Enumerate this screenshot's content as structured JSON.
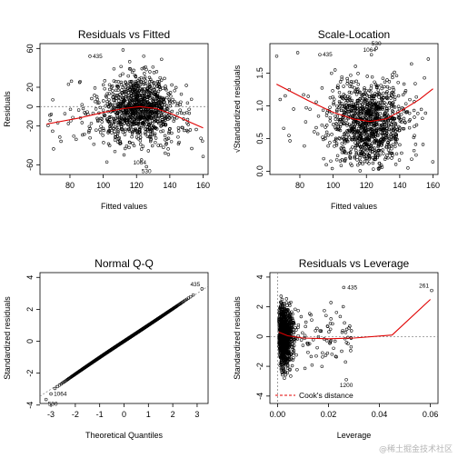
{
  "chart_data": [
    {
      "type": "scatter",
      "title": "Residuals vs Fitted",
      "xlabel": "Fitted values",
      "ylabel": "Residuals",
      "xlim": [
        62,
        163
      ],
      "ylim": [
        -70,
        65
      ],
      "xticks": [
        80,
        100,
        120,
        140,
        160
      ],
      "yticks": [
        -60,
        -20,
        0,
        20,
        60
      ],
      "reference_line": 0,
      "smooth": {
        "x": [
          66,
          85,
          100,
          112,
          122,
          132,
          142,
          152,
          160
        ],
        "y": [
          -18,
          -12,
          -6,
          -2,
          0,
          -2,
          -8,
          -16,
          -22
        ]
      },
      "cloud": {
        "center_x": 121,
        "spread_x": 11,
        "spread_y": 17,
        "n": 1100,
        "seed": 11
      },
      "outliers": [
        {
          "x": 92,
          "y": 52,
          "label": "435"
        },
        {
          "x": 123,
          "y": -55,
          "label": "1064"
        },
        {
          "x": 126,
          "y": -62,
          "label": "530"
        }
      ]
    },
    {
      "type": "scatter",
      "title": "Scale-Location",
      "xlabel": "Fitted values",
      "ylabel": "√Standardized residuals",
      "xlim": [
        62,
        163
      ],
      "ylim": [
        -0.05,
        1.95
      ],
      "xticks": [
        80,
        100,
        120,
        140,
        160
      ],
      "yticks": [
        0.0,
        0.5,
        1.0,
        1.5
      ],
      "ytick_labels": [
        "0.0",
        "0.5",
        "1.0",
        "1.5"
      ],
      "smooth": {
        "x": [
          66,
          85,
          100,
          112,
          122,
          132,
          142,
          152,
          160
        ],
        "y": [
          1.33,
          1.08,
          0.9,
          0.8,
          0.76,
          0.8,
          0.94,
          1.1,
          1.26
        ]
      },
      "cloud": {
        "center_x": 121,
        "spread_x": 11,
        "n": 1100,
        "seed": 23
      },
      "outliers": [
        {
          "x": 92,
          "y": 1.78,
          "label": "435"
        },
        {
          "x": 123,
          "y": 1.78,
          "label": "1064"
        },
        {
          "x": 126,
          "y": 1.88,
          "label": "530"
        }
      ]
    },
    {
      "type": "scatter",
      "title": "Normal Q-Q",
      "xlabel": "Theoretical Quantiles",
      "ylabel": "Standardized residuals",
      "xlim": [
        -3.45,
        3.45
      ],
      "ylim": [
        -3.9,
        4.3
      ],
      "xticks": [
        -3,
        -2,
        -1,
        0,
        1,
        2,
        3
      ],
      "yticks": [
        -4,
        -2,
        0,
        2,
        4
      ],
      "reference_line": {
        "slope": 1.0,
        "intercept": 0.0
      },
      "n": 1100,
      "outliers": [
        {
          "x": 3.2,
          "y": 3.28,
          "label": "435"
        },
        {
          "x": -3.0,
          "y": -3.3,
          "label": "1064"
        },
        {
          "x": -3.2,
          "y": -3.65,
          "label": "530"
        }
      ]
    },
    {
      "type": "scatter",
      "title": "Residuals vs Leverage",
      "xlabel": "Leverage",
      "ylabel": "Standardized residuals",
      "xlim": [
        -0.003,
        0.063
      ],
      "ylim": [
        -4.5,
        4.3
      ],
      "xticks": [
        0.0,
        0.02,
        0.04,
        0.06
      ],
      "xtick_labels": [
        "0.00",
        "0.02",
        "0.04",
        "0.06"
      ],
      "yticks": [
        -4,
        -2,
        0,
        2,
        4
      ],
      "reference_line": 0,
      "smooth": {
        "x": [
          0.0005,
          0.004,
          0.01,
          0.02,
          0.03,
          0.045,
          0.06
        ],
        "y": [
          0.3,
          0.05,
          -0.1,
          -0.15,
          -0.1,
          0.1,
          2.5
        ]
      },
      "cloud": {
        "center_x": 0.003,
        "n": 1050,
        "seed": 37
      },
      "outliers": [
        {
          "x": 0.026,
          "y": 3.3,
          "label": "435"
        },
        {
          "x": 0.0605,
          "y": 3.1,
          "label": "261"
        },
        {
          "x": 0.027,
          "y": -2.9,
          "label": "1200"
        }
      ],
      "legend": {
        "label": "Cook's distance",
        "position": "bottom-left"
      }
    }
  ],
  "watermark": "@稀土掘金技术社区"
}
